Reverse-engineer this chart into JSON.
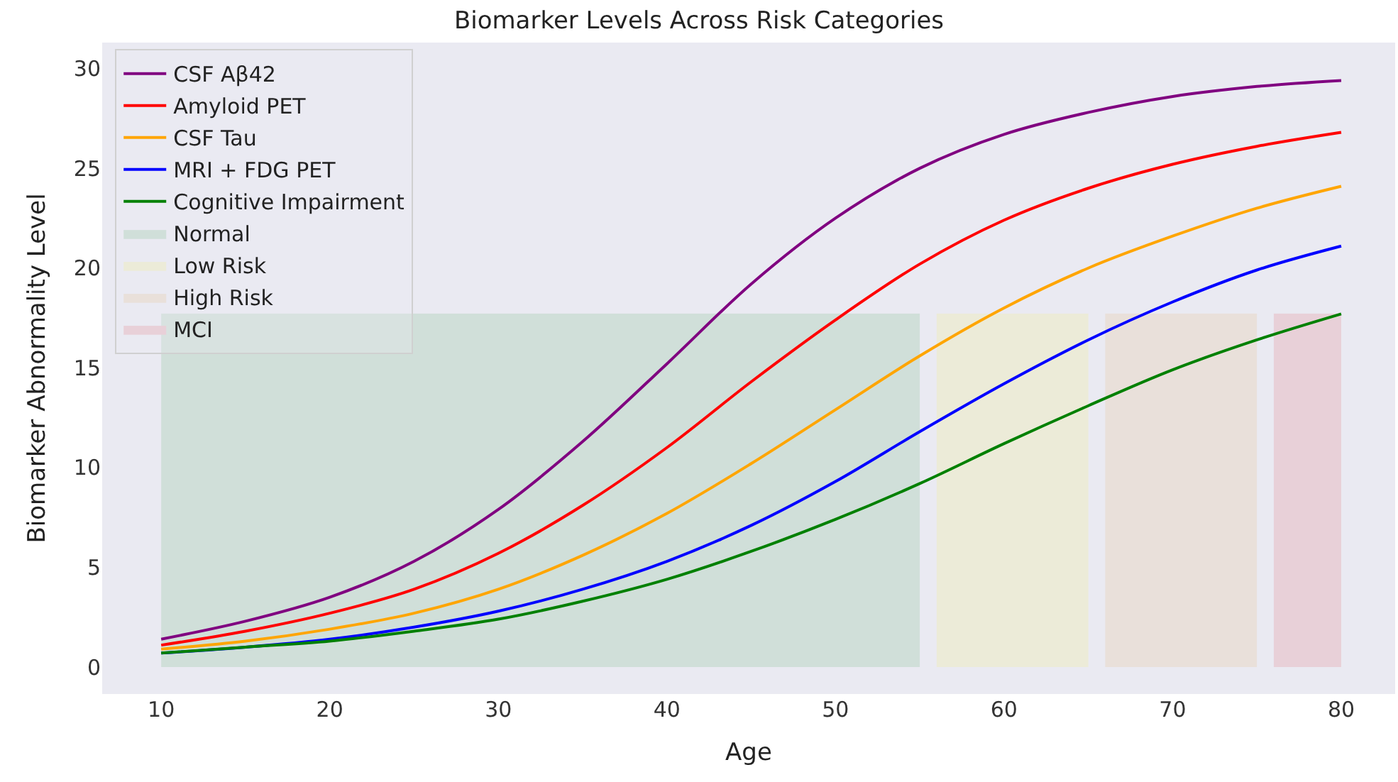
{
  "chart_data": {
    "type": "line",
    "title": "Biomarker Levels Across Risk Categories",
    "xlabel": "Age",
    "ylabel": "Biomarker Abnormality Level",
    "x": [
      10,
      15,
      20,
      25,
      30,
      35,
      40,
      45,
      50,
      55,
      60,
      65,
      70,
      75,
      80
    ],
    "xlim": [
      6.5,
      83.2
    ],
    "xticks": [
      10,
      20,
      30,
      40,
      50,
      60,
      70,
      80
    ],
    "ylim": [
      -1.35,
      31.3
    ],
    "yticks": [
      0,
      5,
      10,
      15,
      20,
      25,
      30
    ],
    "grid": false,
    "legend": "top left",
    "line_style": "solid",
    "marker": "none",
    "series": [
      {
        "name": "CSF Aβ42",
        "color": "#800080",
        "values": [
          1.4,
          2.3,
          3.5,
          5.3,
          7.9,
          11.3,
          15.2,
          19.2,
          22.5,
          25.0,
          26.7,
          27.8,
          28.6,
          29.1,
          29.4
        ]
      },
      {
        "name": "Amyloid PET",
        "color": "#ff0000",
        "values": [
          1.1,
          1.8,
          2.7,
          3.9,
          5.7,
          8.1,
          11.0,
          14.3,
          17.4,
          20.2,
          22.4,
          24.0,
          25.2,
          26.1,
          26.8
        ]
      },
      {
        "name": "CSF Tau",
        "color": "#ffa500",
        "values": [
          0.9,
          1.3,
          1.9,
          2.7,
          3.9,
          5.6,
          7.7,
          10.2,
          12.9,
          15.6,
          18.0,
          20.0,
          21.6,
          23.0,
          24.1
        ]
      },
      {
        "name": "MRI + FDG PET",
        "color": "#0000ff",
        "values": [
          0.7,
          1.0,
          1.4,
          2.0,
          2.8,
          3.9,
          5.3,
          7.1,
          9.3,
          11.8,
          14.2,
          16.4,
          18.3,
          19.9,
          21.1
        ]
      },
      {
        "name": "Cognitive Impairment",
        "color": "#008000",
        "values": [
          0.7,
          1.0,
          1.3,
          1.8,
          2.4,
          3.3,
          4.4,
          5.8,
          7.4,
          9.2,
          11.2,
          13.1,
          14.9,
          16.4,
          17.7
        ]
      },
      {
        "name": "Normal",
        "type": "area",
        "color": "#d0dfd9",
        "x": [
          10,
          55
        ],
        "values": [
          17.7,
          17.7
        ]
      },
      {
        "name": "Low Risk",
        "type": "area",
        "color": "#ecebd8",
        "x": [
          56,
          65
        ],
        "values": [
          17.7,
          17.7
        ]
      },
      {
        "name": "High Risk",
        "type": "area",
        "color": "#e9e0da",
        "x": [
          66,
          75
        ],
        "values": [
          17.7,
          17.7
        ]
      },
      {
        "name": "MCI",
        "type": "area",
        "color": "#e8d0d8",
        "x": [
          76,
          80
        ],
        "values": [
          17.7,
          17.7
        ]
      }
    ]
  }
}
